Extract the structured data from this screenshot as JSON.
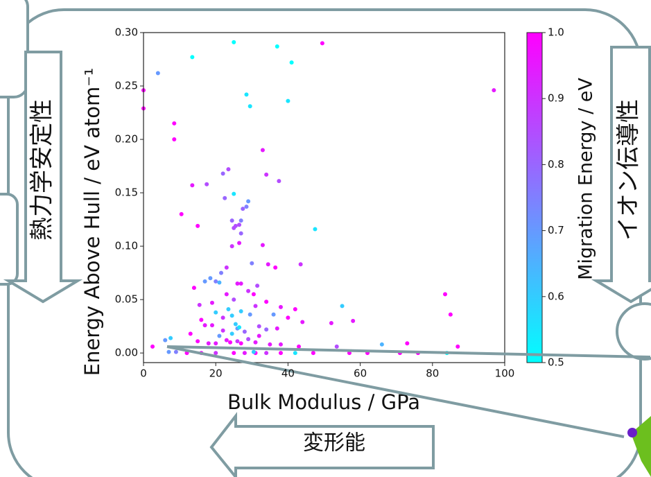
{
  "chart_data": {
    "type": "scatter",
    "x_label": "Bulk Modulus / GPa",
    "y_label": "Energy Above Hull / eV atom⁻¹",
    "colorbar_label": "Migration Energy / eV",
    "annotations": [
      "熱力学安定性",
      "イオン伝導性",
      "変形能"
    ],
    "xlim": [
      0,
      100
    ],
    "xticks": [
      0,
      20,
      40,
      60,
      80,
      100
    ],
    "ylim": [
      -0.009,
      0.3
    ],
    "yticks": [
      {
        "value": 0,
        "label": "0.00"
      },
      {
        "value": 0.05,
        "label": "0.05"
      },
      {
        "value": 0.1,
        "label": "0.10"
      },
      {
        "value": 0.15,
        "label": "0.15"
      },
      {
        "value": 0.2,
        "label": "0.20"
      },
      {
        "value": 0.25,
        "label": "0.25"
      },
      {
        "value": 0.3,
        "label": "0.30"
      }
    ],
    "clim": [
      0.5,
      1.0
    ],
    "cticks": [
      {
        "value": 0.5,
        "label": "0.5"
      },
      {
        "value": 0.6,
        "label": "0.6"
      },
      {
        "value": 0.7,
        "label": "0.7"
      },
      {
        "value": 0.8,
        "label": "0.8"
      },
      {
        "value": 0.9,
        "label": "0.9"
      },
      {
        "value": 1.0,
        "label": "1.0"
      }
    ],
    "colormap": "cool",
    "grid": false,
    "series": [
      {
        "x": [
          25,
          37,
          49.5,
          13.5,
          41,
          4,
          0,
          97,
          28.5,
          29.5,
          40,
          0,
          8.5,
          8.5,
          33,
          22,
          23.5,
          34,
          37.5,
          13.5,
          17.5,
          25,
          22.5,
          29,
          28.5,
          27.5,
          10.5,
          27,
          24.5,
          25.5,
          26.5,
          25,
          15,
          47.5,
          27,
          26.5,
          24.5,
          33,
          34.5,
          43.5,
          30,
          36.5,
          23,
          21.5,
          18.5,
          17,
          20,
          21,
          14,
          26,
          27,
          31.5,
          29,
          30.5,
          23,
          25,
          19,
          15.5,
          34,
          31,
          38,
          83.5,
          55,
          85,
          42,
          20,
          23.5,
          24.5,
          22,
          16,
          27,
          29.5,
          36,
          40,
          44,
          52,
          58,
          25.5,
          26,
          17,
          19,
          32,
          26.5,
          24.5,
          22,
          28,
          34,
          37,
          13,
          21,
          32,
          29,
          23,
          26,
          15,
          18,
          20,
          24,
          27,
          31,
          35,
          38,
          43,
          53.5,
          66,
          73,
          87,
          6,
          7.5,
          2.5,
          7,
          9,
          12,
          16,
          20,
          25,
          28,
          31,
          34,
          38,
          42,
          47,
          57,
          62,
          71,
          76,
          84,
          30.5
        ],
        "values": [
          0.291,
          0.287,
          0.29,
          0.277,
          0.272,
          0.262,
          0.246,
          0.246,
          0.242,
          0.231,
          0.236,
          0.229,
          0.215,
          0.2,
          0.19,
          0.168,
          0.172,
          0.167,
          0.161,
          0.157,
          0.158,
          0.149,
          0.145,
          0.142,
          0.137,
          0.135,
          0.13,
          0.124,
          0.124,
          0.119,
          0.12,
          0.117,
          0.119,
          0.116,
          0.112,
          0.103,
          0.1,
          0.101,
          0.083,
          0.083,
          0.084,
          0.08,
          0.08,
          0.075,
          0.07,
          0.067,
          0.067,
          0.066,
          0.061,
          0.065,
          0.065,
          0.063,
          0.058,
          0.055,
          0.055,
          0.05,
          0.047,
          0.045,
          0.048,
          0.044,
          0.043,
          0.055,
          0.044,
          0.036,
          0.041,
          0.038,
          0.041,
          0.035,
          0.033,
          0.031,
          0.039,
          0.036,
          0.036,
          0.033,
          0.029,
          0.028,
          0.03,
          0.027,
          0.023,
          0.026,
          0.026,
          0.025,
          0.024,
          0.018,
          0.021,
          0.02,
          0.022,
          0.023,
          0.018,
          0.016,
          0.016,
          0.013,
          0.012,
          0.011,
          0.011,
          0.009,
          0.009,
          0.01,
          0.009,
          0.01,
          0.008,
          0.008,
          0.006,
          0.006,
          0.008,
          0.009,
          0.006,
          0.012,
          0.014,
          0.006,
          0.001,
          0.001,
          0,
          0,
          0,
          0,
          0,
          0,
          0,
          0,
          0,
          0,
          0,
          0,
          0,
          0,
          0,
          0.001
        ],
        "color_values": [
          0.5,
          0.5,
          1.0,
          0.5,
          0.5,
          0.7,
          1.0,
          0.95,
          0.55,
          0.55,
          0.55,
          1.0,
          1.0,
          1.0,
          0.95,
          0.8,
          0.85,
          0.9,
          0.85,
          0.95,
          0.85,
          0.55,
          0.8,
          0.7,
          0.75,
          0.8,
          1.0,
          0.75,
          0.8,
          0.85,
          0.85,
          0.85,
          1.0,
          0.55,
          0.8,
          0.95,
          0.9,
          0.95,
          0.95,
          0.9,
          0.75,
          1.0,
          0.9,
          0.75,
          0.7,
          0.7,
          0.75,
          0.65,
          1.0,
          0.95,
          0.95,
          0.85,
          0.9,
          1.0,
          0.95,
          0.85,
          0.95,
          0.9,
          1.0,
          0.9,
          0.95,
          1.0,
          0.6,
          1.0,
          1.0,
          0.6,
          0.6,
          0.6,
          0.9,
          1.0,
          0.6,
          0.7,
          0.7,
          1.0,
          0.95,
          0.95,
          0.95,
          0.6,
          0.7,
          0.95,
          0.95,
          0.85,
          0.55,
          0.6,
          0.9,
          0.8,
          0.8,
          0.95,
          1.0,
          0.7,
          0.95,
          0.85,
          0.95,
          0.9,
          1.0,
          0.95,
          0.95,
          1.0,
          1.0,
          0.95,
          0.95,
          0.95,
          1.0,
          0.85,
          0.65,
          1.0,
          1.0,
          0.7,
          0.6,
          1.0,
          0.7,
          0.75,
          1.0,
          0.95,
          0.9,
          1.0,
          0.95,
          1.0,
          0.9,
          1.0,
          0.55,
          1.0,
          1.0,
          1.0,
          1.0,
          1.0,
          0.5,
          0.6
        ]
      }
    ]
  }
}
